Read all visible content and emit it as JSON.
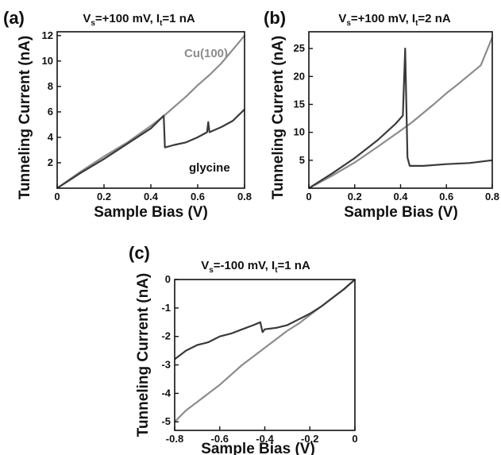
{
  "chart_data": [
    {
      "panel": "(a)",
      "type": "line",
      "title": "Vs=+100 mV, It=1 nA",
      "title_parts": {
        "a": "V",
        "a_sub": "s",
        "b": "=+100 mV, ",
        "c": "I",
        "c_sub": "t",
        "d": "=1 nA"
      },
      "xlabel": "Sample Bias (V)",
      "ylabel": "Tunneling Current (nA)",
      "xlim": [
        0,
        0.8
      ],
      "ylim": [
        0,
        12.3
      ],
      "xticks": [
        "0",
        "0.2",
        "0.4",
        "0.6",
        "0.8"
      ],
      "yticks": [
        "2",
        "4",
        "6",
        "8",
        "10",
        "12"
      ],
      "annotations": {
        "cu": "Cu(100)",
        "gly": "glycine"
      },
      "series": [
        {
          "name": "Cu(100)",
          "color": "#8c8c8c",
          "x": [
            0,
            0.1,
            0.2,
            0.3,
            0.4,
            0.45,
            0.5,
            0.55,
            0.6,
            0.65,
            0.7,
            0.75,
            0.8
          ],
          "y": [
            0,
            1.3,
            2.5,
            3.6,
            4.9,
            5.6,
            6.4,
            7.2,
            8.1,
            8.9,
            9.8,
            10.9,
            12.0
          ]
        },
        {
          "name": "glycine",
          "color": "#3a3a3a",
          "x": [
            0,
            0.1,
            0.2,
            0.3,
            0.4,
            0.455,
            0.46,
            0.5,
            0.55,
            0.6,
            0.64,
            0.645,
            0.65,
            0.7,
            0.75,
            0.8
          ],
          "y": [
            0,
            1.2,
            2.3,
            3.5,
            4.7,
            5.7,
            3.2,
            3.4,
            3.6,
            4.0,
            4.4,
            5.2,
            4.4,
            4.8,
            5.3,
            6.2
          ]
        }
      ]
    },
    {
      "panel": "(b)",
      "type": "line",
      "title": "Vs=+100 mV, It=2 nA",
      "title_parts": {
        "a": "V",
        "a_sub": "s",
        "b": "=+100 mV, ",
        "c": "I",
        "c_sub": "t",
        "d": "=2 nA"
      },
      "xlabel": "Sample Bias (V)",
      "ylabel": "Tunneling Current (nA)",
      "xlim": [
        0,
        0.8
      ],
      "ylim": [
        0,
        28
      ],
      "xticks": [
        "0",
        "0.2",
        "0.4",
        "0.6",
        "0.8"
      ],
      "yticks": [
        "5",
        "10",
        "15",
        "20",
        "25"
      ],
      "series": [
        {
          "name": "Cu(100)",
          "color": "#8c8c8c",
          "x": [
            0,
            0.1,
            0.2,
            0.3,
            0.4,
            0.45,
            0.5,
            0.55,
            0.6,
            0.65,
            0.7,
            0.75,
            0.8
          ],
          "y": [
            0,
            2.2,
            4.6,
            7.4,
            10.3,
            11.8,
            13.5,
            15.2,
            17.0,
            18.6,
            20.3,
            22.0,
            27.0
          ]
        },
        {
          "name": "glycine",
          "color": "#3a3a3a",
          "x": [
            0,
            0.1,
            0.2,
            0.3,
            0.38,
            0.41,
            0.42,
            0.43,
            0.44,
            0.5,
            0.6,
            0.7,
            0.8
          ],
          "y": [
            0,
            2.6,
            5.4,
            8.6,
            11.6,
            13.0,
            25.0,
            5.5,
            4.0,
            4.0,
            4.3,
            4.5,
            5.0
          ]
        }
      ]
    },
    {
      "panel": "(c)",
      "type": "line",
      "title": "Vs=-100 mV, It=1 nA",
      "title_parts": {
        "a": "V",
        "a_sub": "s",
        "b": "=-100 mV, ",
        "c": "I",
        "c_sub": "t",
        "d": "=1 nA"
      },
      "xlabel": "Sample Bias (V)",
      "ylabel": "Tunneling Current (nA)",
      "xlim": [
        -0.8,
        0
      ],
      "ylim": [
        -5.3,
        0
      ],
      "xticks": [
        "-0.8",
        "-0.6",
        "-0.4",
        "-0.2",
        "0"
      ],
      "yticks": [
        "0",
        "-1",
        "-2",
        "-3",
        "-4",
        "-5"
      ],
      "series": [
        {
          "name": "Cu(100)",
          "color": "#8c8c8c",
          "x": [
            -0.8,
            -0.75,
            -0.7,
            -0.65,
            -0.6,
            -0.55,
            -0.5,
            -0.45,
            -0.4,
            -0.35,
            -0.3,
            -0.25,
            -0.2,
            -0.15,
            -0.1,
            -0.05,
            0
          ],
          "y": [
            -5.0,
            -4.6,
            -4.3,
            -4.0,
            -3.7,
            -3.35,
            -3.0,
            -2.7,
            -2.4,
            -2.1,
            -1.8,
            -1.55,
            -1.25,
            -0.95,
            -0.65,
            -0.35,
            0
          ]
        },
        {
          "name": "glycine",
          "color": "#3a3a3a",
          "x": [
            -0.8,
            -0.75,
            -0.7,
            -0.65,
            -0.6,
            -0.55,
            -0.5,
            -0.45,
            -0.42,
            -0.41,
            -0.4,
            -0.35,
            -0.3,
            -0.25,
            -0.2,
            -0.15,
            -0.1,
            -0.05,
            0
          ],
          "y": [
            -2.8,
            -2.5,
            -2.3,
            -2.2,
            -2.0,
            -1.9,
            -1.75,
            -1.6,
            -1.5,
            -1.85,
            -1.75,
            -1.7,
            -1.6,
            -1.4,
            -1.2,
            -0.95,
            -0.65,
            -0.35,
            0
          ]
        }
      ]
    }
  ]
}
